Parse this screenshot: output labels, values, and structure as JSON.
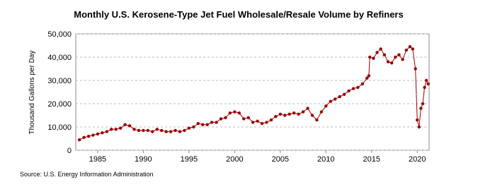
{
  "chart_data": {
    "type": "line",
    "title": "Monthly U.S. Kerosene-Type Jet Fuel Wholesale/Resale Volume by Refiners",
    "y_label": "Thousand Gallons per Day",
    "source": "Source: U.S. Energy Information Administration",
    "grid": true,
    "x": [
      1983.0,
      1983.5,
      1984.0,
      1984.5,
      1985.0,
      1985.5,
      1986.0,
      1986.5,
      1987.0,
      1987.5,
      1988.0,
      1988.5,
      1989.0,
      1989.5,
      1990.0,
      1990.5,
      1991.0,
      1991.5,
      1992.0,
      1992.5,
      1993.0,
      1993.5,
      1994.0,
      1994.5,
      1995.0,
      1995.5,
      1996.0,
      1996.5,
      1997.0,
      1997.5,
      1998.0,
      1998.5,
      1999.0,
      1999.5,
      2000.0,
      2000.5,
      2001.0,
      2001.5,
      2002.0,
      2002.5,
      2003.0,
      2003.5,
      2004.0,
      2004.5,
      2005.0,
      2005.5,
      2006.0,
      2006.5,
      2007.0,
      2007.5,
      2008.0,
      2008.5,
      2009.0,
      2009.5,
      2010.0,
      2010.5,
      2011.0,
      2011.5,
      2012.0,
      2012.5,
      2013.0,
      2013.5,
      2014.0,
      2014.5,
      2014.7,
      2014.8,
      2015.2,
      2015.6,
      2016.0,
      2016.4,
      2016.8,
      2017.2,
      2017.6,
      2018.0,
      2018.4,
      2018.8,
      2019.2,
      2019.5,
      2019.8,
      2020.0,
      2020.2,
      2020.4,
      2020.6,
      2020.8,
      2021.0,
      2021.2
    ],
    "series": [
      {
        "name": "Volume",
        "color": "#990000",
        "values": [
          4500,
          5500,
          6000,
          6500,
          7000,
          7500,
          8000,
          9000,
          9000,
          9500,
          11000,
          10500,
          9000,
          8500,
          8500,
          8500,
          8000,
          9000,
          8500,
          8000,
          8000,
          8500,
          8000,
          8500,
          9500,
          10000,
          11500,
          11000,
          11000,
          12000,
          12000,
          13500,
          14000,
          16000,
          16500,
          16000,
          13500,
          14000,
          12000,
          12500,
          11500,
          12000,
          13000,
          14500,
          15500,
          15000,
          15500,
          16000,
          15500,
          16500,
          18000,
          15000,
          13000,
          16500,
          19000,
          21000,
          22000,
          23000,
          24000,
          25500,
          26500,
          27000,
          28500,
          31000,
          32000,
          40000,
          39500,
          42000,
          43500,
          41000,
          38000,
          37500,
          40000,
          41000,
          39000,
          43000,
          44500,
          43500,
          35000,
          13000,
          10000,
          18000,
          20000,
          27000,
          30000,
          28500
        ]
      }
    ],
    "xlim": [
      1982.6,
      2021.3
    ],
    "ylim": [
      0,
      50000
    ],
    "xticks": [
      1985,
      1990,
      1995,
      2000,
      2005,
      2010,
      2015,
      2020
    ],
    "yticks": [
      0,
      {
        "value": 10000,
        "label": "10,000"
      },
      {
        "value": 20000,
        "label": "20,000"
      },
      {
        "value": 30000,
        "label": "30,000"
      },
      {
        "value": 40000,
        "label": "40,000"
      },
      {
        "value": 50000,
        "label": "50,000"
      }
    ]
  }
}
